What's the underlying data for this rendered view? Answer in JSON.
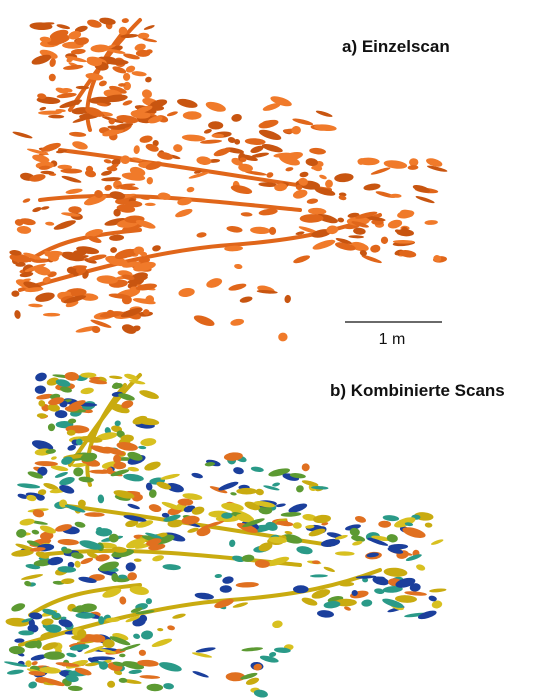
{
  "panel_a": {
    "label": "a) Einzelscan"
  },
  "scale_bar": {
    "label": "1 m"
  },
  "panel_b": {
    "label": "b) Kombinierte Scans"
  }
}
